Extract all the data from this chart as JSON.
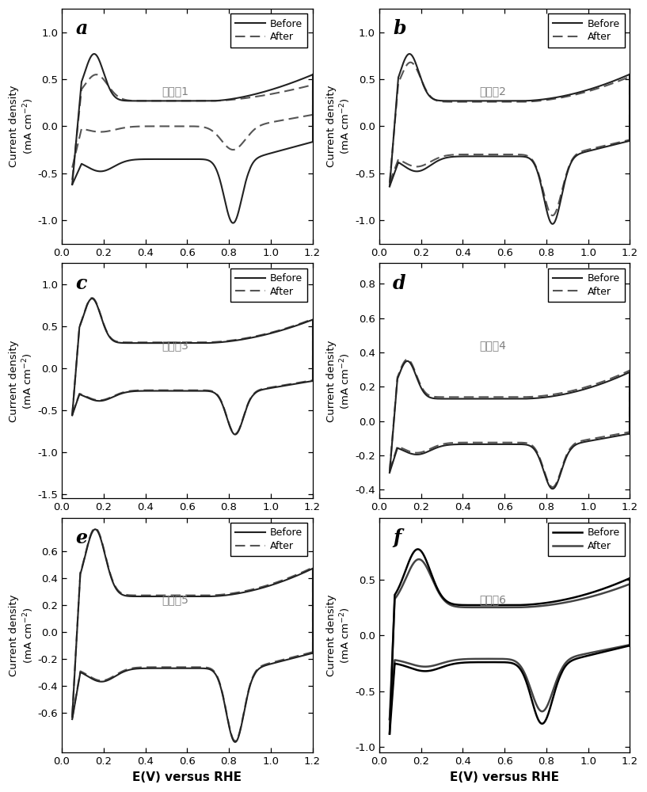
{
  "panels": [
    {
      "label": "a",
      "annotation": "实施例1",
      "ylim": [
        -1.25,
        1.25
      ],
      "yticks": [
        -1.0,
        -0.5,
        0.0,
        0.5,
        1.0
      ],
      "after_style": "dashed",
      "after_color": "#555555",
      "before_color": "#222222"
    },
    {
      "label": "b",
      "annotation": "实施例2",
      "ylim": [
        -1.25,
        1.25
      ],
      "yticks": [
        -1.0,
        -0.5,
        0.0,
        0.5,
        1.0
      ],
      "after_style": "dashed",
      "after_color": "#555555",
      "before_color": "#222222"
    },
    {
      "label": "c",
      "annotation": "实施例3",
      "ylim": [
        -1.55,
        1.25
      ],
      "yticks": [
        -1.5,
        -1.0,
        -0.5,
        0.0,
        0.5,
        1.0
      ],
      "after_style": "dashed",
      "after_color": "#555555",
      "before_color": "#222222"
    },
    {
      "label": "d",
      "annotation": "实施例4",
      "ylim": [
        -0.45,
        0.92
      ],
      "yticks": [
        -0.4,
        -0.2,
        0.0,
        0.2,
        0.4,
        0.6,
        0.8
      ],
      "after_style": "dashed",
      "after_color": "#555555",
      "before_color": "#222222"
    },
    {
      "label": "e",
      "annotation": "实施例5",
      "ylim": [
        -0.9,
        0.85
      ],
      "yticks": [
        -0.6,
        -0.4,
        -0.2,
        0.0,
        0.2,
        0.4,
        0.6
      ],
      "after_style": "dashed",
      "after_color": "#555555",
      "before_color": "#222222"
    },
    {
      "label": "f",
      "annotation": "实施例6",
      "ylim": [
        -1.05,
        1.05
      ],
      "yticks": [
        -1.0,
        -0.5,
        0.0,
        0.5
      ],
      "after_style": "solid",
      "after_color": "#444444",
      "before_color": "#000000"
    }
  ],
  "xlim": [
    0.0,
    1.2
  ],
  "xticks": [
    0.0,
    0.2,
    0.4,
    0.6,
    0.8,
    1.0,
    1.2
  ],
  "xlabel": "E(V) versus RHE",
  "legend_before": "Before",
  "legend_after": "After",
  "background_color": "#ffffff",
  "line_width": 1.5
}
